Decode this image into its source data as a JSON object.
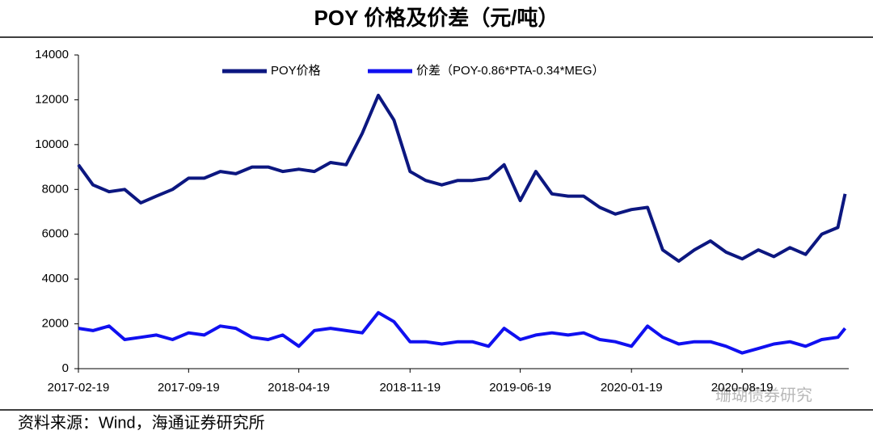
{
  "chart_data": {
    "type": "line",
    "title": "POY 价格及价差（元/吨）",
    "source": "资料来源：Wind，海通证券研究所",
    "watermark": "珊瑚债券研究",
    "x": [
      "2017-02-19",
      "2017-03-19",
      "2017-04-19",
      "2017-05-19",
      "2017-06-19",
      "2017-07-19",
      "2017-08-19",
      "2017-09-19",
      "2017-10-19",
      "2017-11-19",
      "2017-12-19",
      "2018-01-19",
      "2018-02-19",
      "2018-03-19",
      "2018-04-19",
      "2018-05-19",
      "2018-06-19",
      "2018-07-19",
      "2018-08-19",
      "2018-09-19",
      "2018-10-19",
      "2018-11-19",
      "2018-12-19",
      "2019-01-19",
      "2019-02-19",
      "2019-03-19",
      "2019-04-19",
      "2019-05-19",
      "2019-06-19",
      "2019-07-19",
      "2019-08-19",
      "2019-09-19",
      "2019-10-19",
      "2019-11-19",
      "2019-12-19",
      "2020-01-19",
      "2020-02-19",
      "2020-03-19",
      "2020-04-19",
      "2020-05-19",
      "2020-06-19",
      "2020-07-19",
      "2020-08-19",
      "2020-09-19",
      "2020-10-19",
      "2020-11-19",
      "2020-12-19",
      "2021-01-19",
      "2021-02-19",
      "2021-03-05"
    ],
    "series": [
      {
        "name": "POY价格",
        "color": "#0c1780",
        "values": [
          9100,
          8200,
          7900,
          8000,
          7400,
          7700,
          8000,
          8500,
          8500,
          8800,
          8700,
          9000,
          9000,
          8800,
          8900,
          8800,
          9200,
          9100,
          10500,
          12200,
          11100,
          8800,
          8400,
          8200,
          8400,
          8400,
          8500,
          9100,
          7500,
          8800,
          7800,
          7700,
          7700,
          7200,
          6900,
          7100,
          7200,
          5300,
          4800,
          5300,
          5700,
          5200,
          4900,
          5300,
          5000,
          5400,
          5100,
          6000,
          6300,
          7800
        ]
      },
      {
        "name": "价差（POY-0.86*PTA-0.34*MEG）",
        "color": "#1010f0",
        "values": [
          1800,
          1700,
          1900,
          1300,
          1400,
          1500,
          1300,
          1600,
          1500,
          1900,
          1800,
          1400,
          1300,
          1500,
          1000,
          1700,
          1800,
          1700,
          1600,
          2500,
          2100,
          1200,
          1200,
          1100,
          1200,
          1200,
          1000,
          1800,
          1300,
          1500,
          1600,
          1500,
          1600,
          1300,
          1200,
          1000,
          1900,
          1400,
          1100,
          1200,
          1200,
          1000,
          700,
          900,
          1100,
          1200,
          1000,
          1300,
          1400,
          1800
        ]
      }
    ],
    "xlim": [
      "2017-02-19",
      "2021-03-12"
    ],
    "xticks": [
      "2017-02-19",
      "2017-09-19",
      "2018-04-19",
      "2018-11-19",
      "2019-06-19",
      "2020-01-19",
      "2020-08-19"
    ],
    "ylim": [
      0,
      14000
    ],
    "yticks": [
      0,
      2000,
      4000,
      6000,
      8000,
      10000,
      12000,
      14000
    ],
    "grid": false,
    "legend": "top"
  }
}
